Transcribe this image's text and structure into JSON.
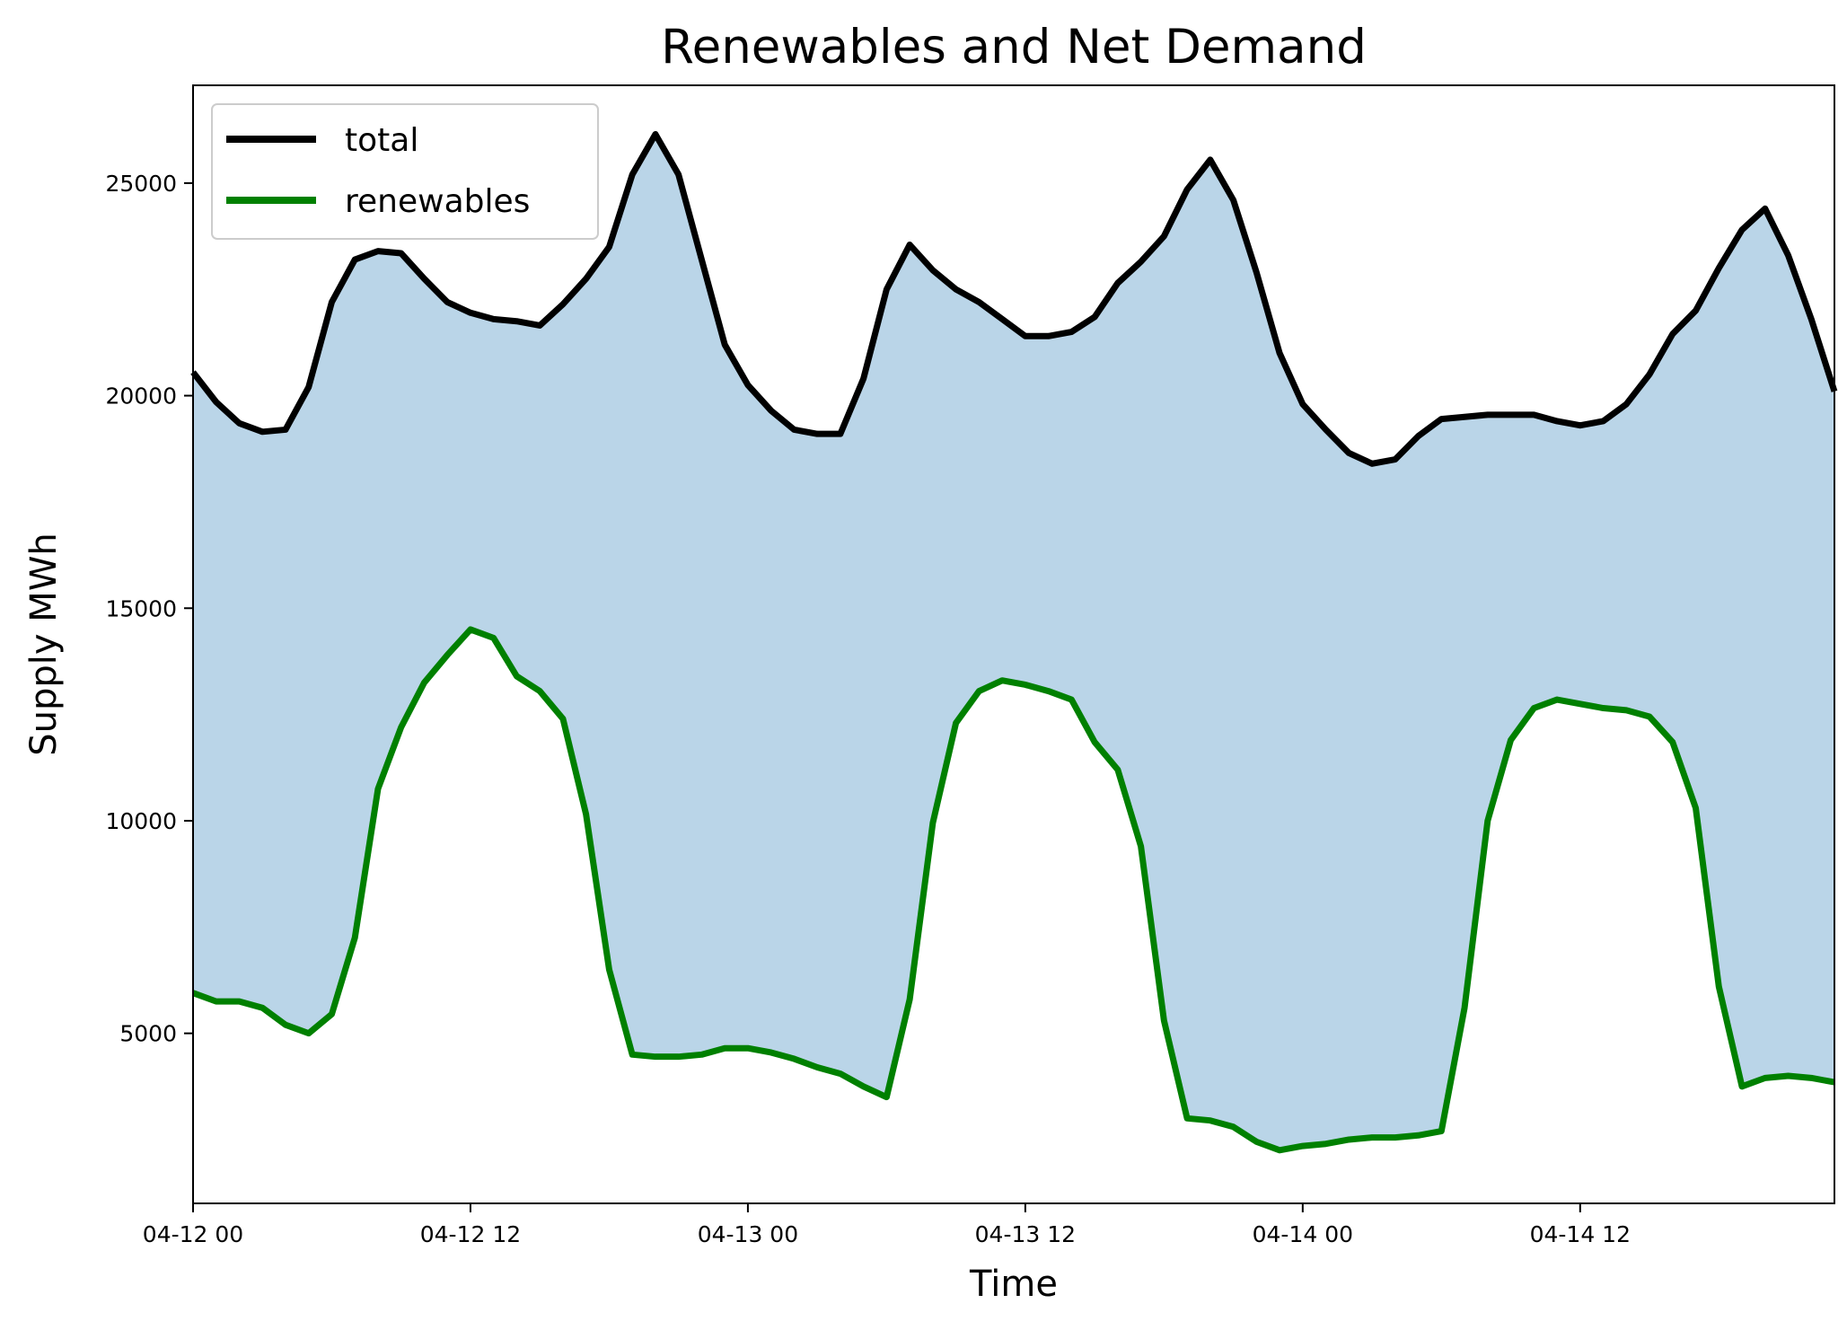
{
  "chart_data": {
    "type": "area",
    "title": "Renewables and Net Demand",
    "xlabel": "Time",
    "ylabel": "Supply MWh",
    "x_unit": "hour",
    "x_start": "04-12 00",
    "x": [
      0,
      1,
      2,
      3,
      4,
      5,
      6,
      7,
      8,
      9,
      10,
      11,
      12,
      13,
      14,
      15,
      16,
      17,
      18,
      19,
      20,
      21,
      22,
      23,
      24,
      25,
      26,
      27,
      28,
      29,
      30,
      31,
      32,
      33,
      34,
      35,
      36,
      37,
      38,
      39,
      40,
      41,
      42,
      43,
      44,
      45,
      46,
      47,
      48,
      49,
      50,
      51,
      52,
      53,
      54,
      55,
      56,
      57,
      58,
      59,
      60,
      61,
      62,
      63,
      64,
      65,
      66,
      67,
      68,
      69,
      70,
      71
    ],
    "xlim": [
      0,
      71
    ],
    "ylim": [
      1000,
      27300
    ],
    "xticks": [
      {
        "value": 0,
        "label": "04-12 00"
      },
      {
        "value": 12,
        "label": "04-12 12"
      },
      {
        "value": 24,
        "label": "04-13 00"
      },
      {
        "value": 36,
        "label": "04-13 12"
      },
      {
        "value": 48,
        "label": "04-14 00"
      },
      {
        "value": 60,
        "label": "04-14 12"
      }
    ],
    "yticks": [
      5000,
      10000,
      15000,
      20000,
      25000
    ],
    "grid": false,
    "legend_position": "top-left",
    "fill_between": {
      "upper": "total",
      "lower": "renewables",
      "color": "#bad5e8"
    },
    "series": [
      {
        "name": "total",
        "color": "#000000",
        "values": [
          20550,
          19850,
          19350,
          19150,
          19200,
          20200,
          22200,
          23200,
          23400,
          23350,
          22750,
          22200,
          21950,
          21800,
          21750,
          21650,
          22150,
          22750,
          23500,
          25200,
          26150,
          25200,
          23200,
          21200,
          20250,
          19650,
          19200,
          19100,
          19100,
          20400,
          22500,
          23550,
          22950,
          22500,
          22200,
          21800,
          21400,
          21400,
          21500,
          21850,
          22650,
          23150,
          23750,
          24850,
          25550,
          24600,
          22900,
          21000,
          19800,
          19200,
          18650,
          18400,
          18500,
          19050,
          19450,
          19500,
          19550,
          19550,
          19550,
          19400,
          19300,
          19400,
          19800,
          20500,
          21450,
          22000,
          23000,
          23900,
          24400,
          23300,
          21800,
          20100
        ]
      },
      {
        "name": "renewables",
        "color": "#008000",
        "values": [
          5950,
          5750,
          5750,
          5600,
          5200,
          5000,
          5450,
          7250,
          10750,
          12200,
          13250,
          13900,
          14500,
          14300,
          13400,
          13050,
          12400,
          10150,
          6500,
          4500,
          4450,
          4450,
          4500,
          4650,
          4650,
          4550,
          4400,
          4200,
          4050,
          3750,
          3500,
          5800,
          9950,
          12300,
          13050,
          13300,
          13200,
          13050,
          12850,
          11850,
          11200,
          9400,
          5300,
          3000,
          2950,
          2800,
          2450,
          2250,
          2350,
          2400,
          2500,
          2550,
          2550,
          2600,
          2700,
          5600,
          10000,
          11900,
          12650,
          12850,
          12750,
          12650,
          12600,
          12450,
          11850,
          10300,
          6100,
          3750,
          3950,
          4000,
          3950,
          3850
        ]
      }
    ]
  }
}
